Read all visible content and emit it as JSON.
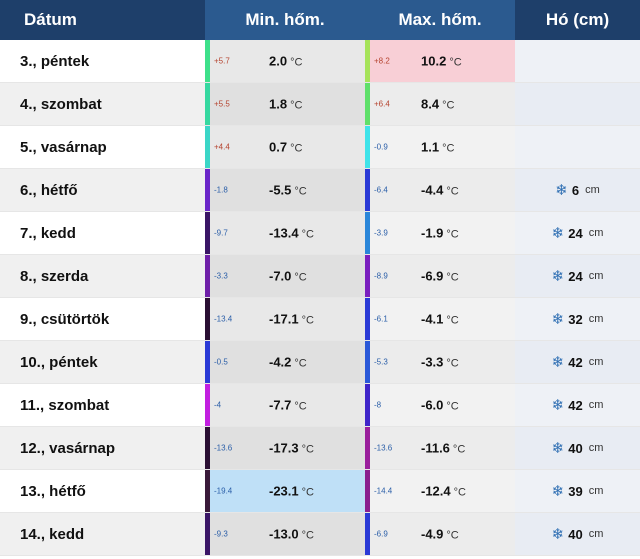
{
  "header": {
    "date": "Dátum",
    "min": "Min. hőm.",
    "max": "Max. hőm.",
    "snow": "Hó (cm)"
  },
  "unit": "°C",
  "snow_unit": "cm",
  "colors": {
    "header_dark": "#1e3f6a",
    "header_mid": "#2b5a8f",
    "highlight_warm": "#f8cfd6",
    "highlight_cold": "#bfe0f7",
    "snow_icon": "#2f6fb3"
  },
  "rows": [
    {
      "date": "3., péntek",
      "min_delta": "+5.7",
      "min": "2.0",
      "min_color": "#3de08a",
      "max_delta": "+8.2",
      "max": "10.2",
      "max_color": "#a6e35a",
      "snow": "",
      "snow_icon": ""
    },
    {
      "date": "4., szombat",
      "min_delta": "+5.5",
      "min": "1.8",
      "min_color": "#35d8a0",
      "max_delta": "+6.4",
      "max": "8.4",
      "max_color": "#5fe06a",
      "snow": "",
      "snow_icon": ""
    },
    {
      "date": "5., vasárnap",
      "min_delta": "+4.4",
      "min": "0.7",
      "min_color": "#3bd6c7",
      "max_delta": "-0.9",
      "max": "1.1",
      "max_color": "#3fe3e9",
      "snow": "",
      "snow_icon": ""
    },
    {
      "date": "6., hétfő",
      "min_delta": "-1.8",
      "min": "-5.5",
      "min_color": "#6a25c9",
      "max_delta": "-6.4",
      "max": "-4.4",
      "max_color": "#2a3ad6",
      "snow": "6",
      "snow_icon": "snowflake-icon"
    },
    {
      "date": "7., kedd",
      "min_delta": "-9.7",
      "min": "-13.4",
      "min_color": "#3a1566",
      "max_delta": "-3.9",
      "max": "-1.9",
      "max_color": "#2a86d9",
      "snow": "24",
      "snow_icon": "snowflake-icon"
    },
    {
      "date": "8., szerda",
      "min_delta": "-3.3",
      "min": "-7.0",
      "min_color": "#6e1fa8",
      "max_delta": "-8.9",
      "max": "-6.9",
      "max_color": "#7a1fbf",
      "snow": "24",
      "snow_icon": "snowflake-icon"
    },
    {
      "date": "9., csütörtök",
      "min_delta": "-13.4",
      "min": "-17.1",
      "min_color": "#2a0f33",
      "max_delta": "-6.1",
      "max": "-4.1",
      "max_color": "#2a3ad6",
      "snow": "32",
      "snow_icon": "snowflake-icon"
    },
    {
      "date": "10., péntek",
      "min_delta": "-0.5",
      "min": "-4.2",
      "min_color": "#2a3ad6",
      "max_delta": "-5.3",
      "max": "-3.3",
      "max_color": "#2a58d8",
      "snow": "42",
      "snow_icon": "snowflake-icon"
    },
    {
      "date": "11., szombat",
      "min_delta": "-4",
      "min": "-7.7",
      "min_color": "#c21fe0",
      "max_delta": "-8",
      "max": "-6.0",
      "max_color": "#3f25c9",
      "snow": "42",
      "snow_icon": "snowflake-icon"
    },
    {
      "date": "12., vasárnap",
      "min_delta": "-13.6",
      "min": "-17.3",
      "min_color": "#2a0f33",
      "max_delta": "-13.6",
      "max": "-11.6",
      "max_color": "#9a1f9c",
      "snow": "40",
      "snow_icon": "snowflake-icon"
    },
    {
      "date": "13., hétfő",
      "min_delta": "-19.4",
      "min": "-23.1",
      "min_color": "#3a1a3a",
      "max_delta": "-14.4",
      "max": "-12.4",
      "max_color": "#8a1f8e",
      "snow": "39",
      "snow_icon": "snowflake-icon"
    },
    {
      "date": "14., kedd",
      "min_delta": "-9.3",
      "min": "-13.0",
      "min_color": "#3a1566",
      "max_delta": "-6.9",
      "max": "-4.9",
      "max_color": "#2a3ad6",
      "snow": "40",
      "snow_icon": "snowflake-icon"
    }
  ]
}
